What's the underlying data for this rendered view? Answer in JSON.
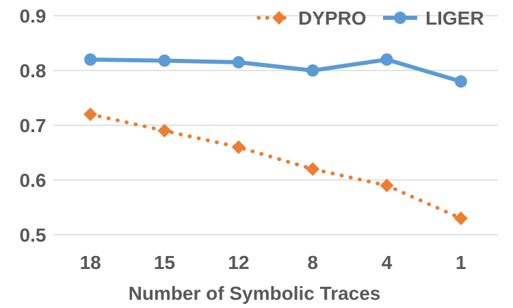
{
  "chart_data": {
    "type": "line",
    "title": "",
    "xlabel": "Number of Symbolic Traces",
    "ylabel": "",
    "categories": [
      "18",
      "15",
      "12",
      "8",
      "4",
      "1"
    ],
    "ylim": [
      0.5,
      0.9
    ],
    "yticks": [
      "0.5",
      "0.6",
      "0.7",
      "0.8",
      "0.9"
    ],
    "grid": true,
    "legend_position": "top-right",
    "series": [
      {
        "name": "DYPRO",
        "values": [
          0.72,
          0.69,
          0.66,
          0.62,
          0.59,
          0.53
        ],
        "color": "#ed7d31",
        "line_style": "dotted",
        "marker": "diamond"
      },
      {
        "name": "LIGER",
        "values": [
          0.82,
          0.818,
          0.815,
          0.8,
          0.82,
          0.78
        ],
        "color": "#5b9bd5",
        "line_style": "solid",
        "marker": "circle"
      }
    ]
  }
}
